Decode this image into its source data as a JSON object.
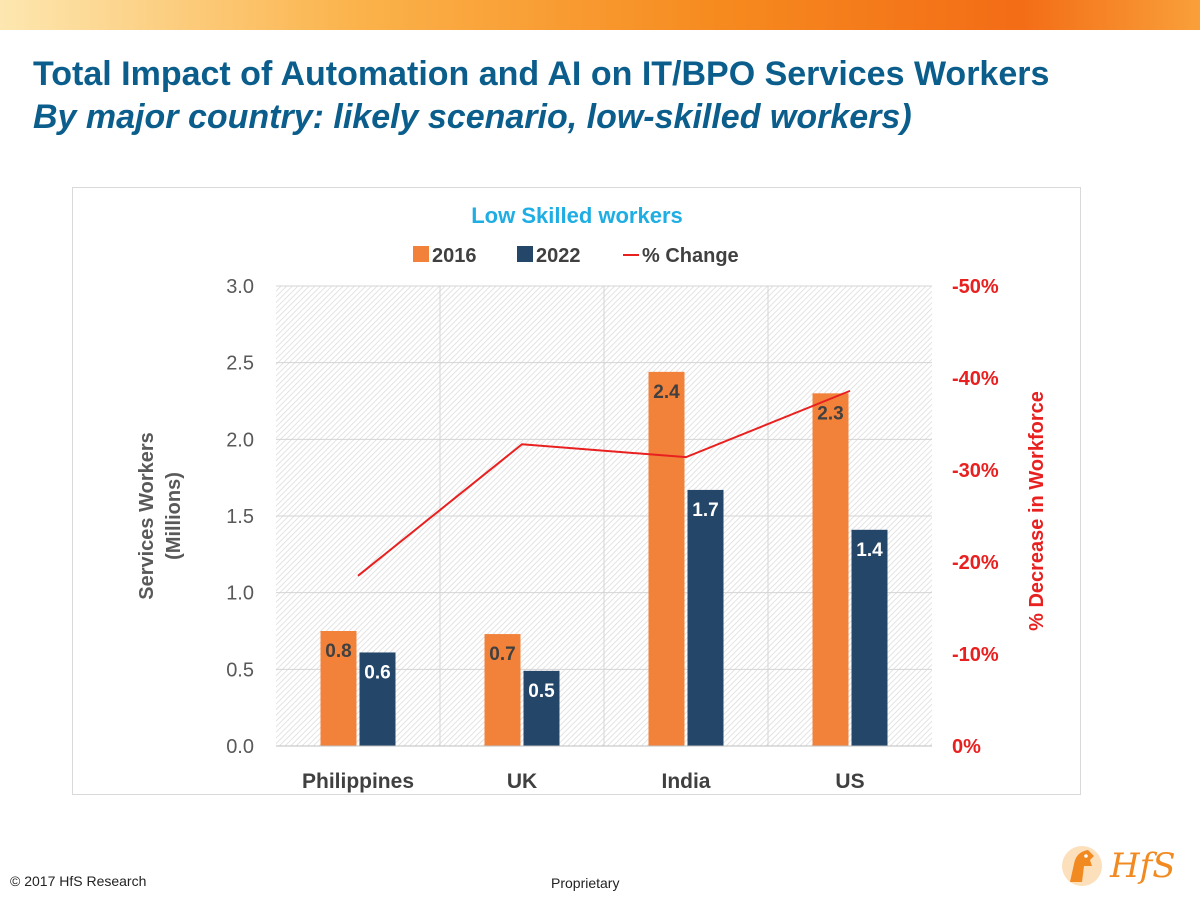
{
  "header": {
    "title": "Total Impact of Automation and AI on IT/BPO Services Workers",
    "subtitle": "By major country: likely scenario, low-skilled workers)"
  },
  "footer": {
    "copyright": "© 2017 HfS Research",
    "proprietary": "Proprietary",
    "logo_text": "HfS"
  },
  "colors": {
    "series_2016": "#f2813a",
    "series_2022": "#234669",
    "pct_line": "#e8201f",
    "title_blue": "#0b5e8c",
    "chart_title": "#1faee3"
  },
  "chart_data": {
    "type": "bar",
    "title": "Low Skilled workers",
    "categories": [
      "Philippines",
      "UK",
      "India",
      "US"
    ],
    "series": [
      {
        "name": "2016",
        "values": [
          0.75,
          0.73,
          2.44,
          2.3
        ],
        "labels": [
          "0.8",
          "0.7",
          "2.4",
          "2.3"
        ]
      },
      {
        "name": "2022",
        "values": [
          0.61,
          0.49,
          1.67,
          1.41
        ],
        "labels": [
          "0.6",
          "0.5",
          "1.7",
          "1.4"
        ]
      }
    ],
    "line_series": {
      "name": "% Change",
      "values": [
        -18.5,
        -32.8,
        -31.4,
        -38.6
      ],
      "axis": "secondary"
    },
    "ylabel": "Services Workers (Millions)",
    "ylabel_lines": [
      "Services Workers",
      "(Millions)"
    ],
    "ylim": [
      0,
      3.0
    ],
    "yticks": [
      "0.0",
      "0.5",
      "1.0",
      "1.5",
      "2.0",
      "2.5",
      "3.0"
    ],
    "y2label": "% Decrease in Workforce",
    "y2lim": [
      0,
      -50
    ],
    "y2ticks": [
      "0%",
      "-10%",
      "-20%",
      "-30%",
      "-40%",
      "-50%"
    ],
    "legend_position": "top"
  }
}
